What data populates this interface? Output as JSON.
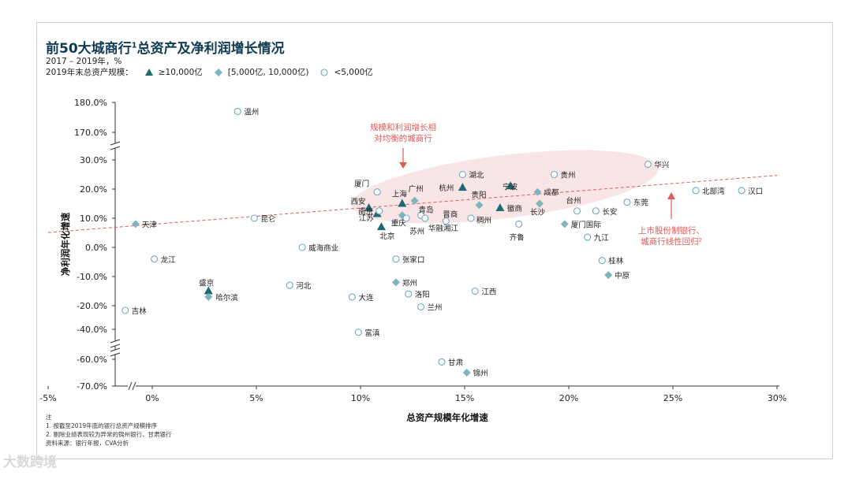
{
  "title": "前50大城商行",
  "title_sup": "1",
  "title_rest": "总资产及净利润增长情况",
  "subtitle": "2017 – 2019年，%",
  "legend_title": "2019年末总资产规模：",
  "legend": [
    {
      "marker": "triangle",
      "label": "≥10,000亿"
    },
    {
      "marker": "diamond",
      "label": "[5,000亿, 10,000亿)"
    },
    {
      "marker": "circle",
      "label": "<5,000亿"
    }
  ],
  "colors": {
    "triangle": "#1e6a72",
    "diamond": "#7fb3c0",
    "circle": "#6fa9bf",
    "accent": "#e05a5a",
    "ellipse": "#f7dcdc"
  },
  "notes": [
    "注",
    "1. 按截至2019年底的银行总资产规模排序",
    "2. 剔除业绩表现较为异常的锦州银行、甘肃银行",
    "资料来源：银行年报，CVA分析"
  ],
  "watermark": "大数跨境",
  "chart_data": {
    "type": "scatter",
    "xlabel": "总资产规模年化增速",
    "ylabel": "净利润年化增速",
    "x_ticks": [
      "-5%",
      "0%",
      "5%",
      "10%",
      "15%",
      "20%",
      "25%",
      "30%"
    ],
    "x_tick_values": [
      -5,
      0,
      5,
      10,
      15,
      20,
      25,
      30
    ],
    "xlim": [
      -5,
      30
    ],
    "y_ticks": [
      "180.0%",
      "170.0%",
      "30.0%",
      "20.0%",
      "10.0%",
      "0.0%",
      "-10.0%",
      "-20.0%",
      "-40.0%",
      "-60.0%",
      "-70.0%"
    ],
    "y_tick_values": [
      180,
      170,
      30,
      20,
      10,
      0,
      -10,
      -20,
      -40,
      -60,
      -70
    ],
    "y_axis_breaks": [
      [
        30,
        170
      ],
      [
        -40,
        -20
      ],
      [
        -60,
        -40
      ]
    ],
    "annotations": [
      {
        "text_lines": [
          "规模和利润增长相",
          "对均衡的城商行"
        ]
      },
      {
        "text_lines": [
          "上市股份制银行、",
          "城商行线性回归²"
        ]
      }
    ],
    "trendline": {
      "x": [
        -5,
        30
      ],
      "y": [
        5.1,
        24.7
      ]
    },
    "points": [
      {
        "name": "温州",
        "x": 4.1,
        "y": 177,
        "marker": "circle"
      },
      {
        "name": "天津",
        "x": -0.8,
        "y": 8,
        "marker": "diamond"
      },
      {
        "name": "昆仑",
        "x": 4.9,
        "y": 10,
        "marker": "circle"
      },
      {
        "name": "龙江",
        "x": 0.1,
        "y": -4,
        "marker": "circle"
      },
      {
        "name": "盛京",
        "x": 2.7,
        "y": -15,
        "marker": "triangle"
      },
      {
        "name": "哈尔滨",
        "x": 2.7,
        "y": -17,
        "marker": "diamond"
      },
      {
        "name": "吉林",
        "x": -1.3,
        "y": -24,
        "marker": "circle"
      },
      {
        "name": "河北",
        "x": 6.6,
        "y": -13,
        "marker": "circle"
      },
      {
        "name": "威海商业",
        "x": 7.2,
        "y": 0,
        "marker": "circle"
      },
      {
        "name": "大连",
        "x": 9.6,
        "y": -17,
        "marker": "circle"
      },
      {
        "name": "富滇",
        "x": 9.9,
        "y": -42,
        "marker": "circle"
      },
      {
        "name": "厦门",
        "x": 10.8,
        "y": 19,
        "marker": "circle"
      },
      {
        "name": "西安",
        "x": 10.4,
        "y": 13.5,
        "marker": "triangle"
      },
      {
        "name": "南京",
        "x": 10.8,
        "y": 11.5,
        "marker": "triangle"
      },
      {
        "name": "江苏",
        "x": 10.9,
        "y": 12.5,
        "marker": "circle"
      },
      {
        "name": "北京",
        "x": 11.0,
        "y": 7,
        "marker": "triangle"
      },
      {
        "name": "上海",
        "x": 12.0,
        "y": 15,
        "marker": "triangle"
      },
      {
        "name": "广州",
        "x": 12.6,
        "y": 16,
        "marker": "diamond"
      },
      {
        "name": "重庆",
        "x": 12.0,
        "y": 11,
        "marker": "diamond"
      },
      {
        "name": "苏州",
        "x": 12.2,
        "y": 10,
        "marker": "circle"
      },
      {
        "name": "青岛",
        "x": 12.9,
        "y": 11,
        "marker": "circle"
      },
      {
        "name": "华融湘江",
        "x": 13.1,
        "y": 10,
        "marker": "circle"
      },
      {
        "name": "晋商",
        "x": 14.1,
        "y": 9,
        "marker": "circle"
      },
      {
        "name": "张家口",
        "x": 11.7,
        "y": -4,
        "marker": "circle"
      },
      {
        "name": "郑州",
        "x": 11.7,
        "y": -12,
        "marker": "diamond"
      },
      {
        "name": "洛阳",
        "x": 12.3,
        "y": -16,
        "marker": "circle"
      },
      {
        "name": "兰州",
        "x": 12.9,
        "y": -21,
        "marker": "circle"
      },
      {
        "name": "甘肃",
        "x": 13.9,
        "y": -61,
        "marker": "circle"
      },
      {
        "name": "锦州",
        "x": 15.1,
        "y": -65,
        "marker": "diamond"
      },
      {
        "name": "湖北",
        "x": 14.9,
        "y": 25,
        "marker": "circle"
      },
      {
        "name": "杭州",
        "x": 14.9,
        "y": 20.5,
        "marker": "triangle"
      },
      {
        "name": "贵阳",
        "x": 15.7,
        "y": 14.5,
        "marker": "diamond"
      },
      {
        "name": "宁波",
        "x": 17.2,
        "y": 21,
        "marker": "triangle"
      },
      {
        "name": "徽商",
        "x": 16.7,
        "y": 13.5,
        "marker": "triangle"
      },
      {
        "name": "稠州",
        "x": 15.3,
        "y": 10,
        "marker": "circle"
      },
      {
        "name": "齐鲁",
        "x": 17.6,
        "y": 8,
        "marker": "circle"
      },
      {
        "name": "江西",
        "x": 15.5,
        "y": -15,
        "marker": "circle"
      },
      {
        "name": "贵州",
        "x": 19.3,
        "y": 25,
        "marker": "circle"
      },
      {
        "name": "成都",
        "x": 18.5,
        "y": 19,
        "marker": "diamond"
      },
      {
        "name": "长沙",
        "x": 18.6,
        "y": 15,
        "marker": "diamond"
      },
      {
        "name": "台州",
        "x": 20.4,
        "y": 12.5,
        "marker": "circle"
      },
      {
        "name": "厦门国际",
        "x": 19.8,
        "y": 8,
        "marker": "diamond"
      },
      {
        "name": "九江",
        "x": 20.9,
        "y": 3.5,
        "marker": "circle"
      },
      {
        "name": "长安",
        "x": 21.3,
        "y": 12.5,
        "marker": "circle"
      },
      {
        "name": "东莞",
        "x": 22.8,
        "y": 15.5,
        "marker": "circle"
      },
      {
        "name": "桂林",
        "x": 21.6,
        "y": -4.5,
        "marker": "circle"
      },
      {
        "name": "中原",
        "x": 21.9,
        "y": -9.5,
        "marker": "diamond"
      },
      {
        "name": "华兴",
        "x": 23.8,
        "y": 28.5,
        "marker": "circle"
      },
      {
        "name": "北部湾",
        "x": 26.1,
        "y": 19.5,
        "marker": "circle"
      },
      {
        "name": "汉口",
        "x": 28.3,
        "y": 19.5,
        "marker": "circle"
      }
    ]
  }
}
